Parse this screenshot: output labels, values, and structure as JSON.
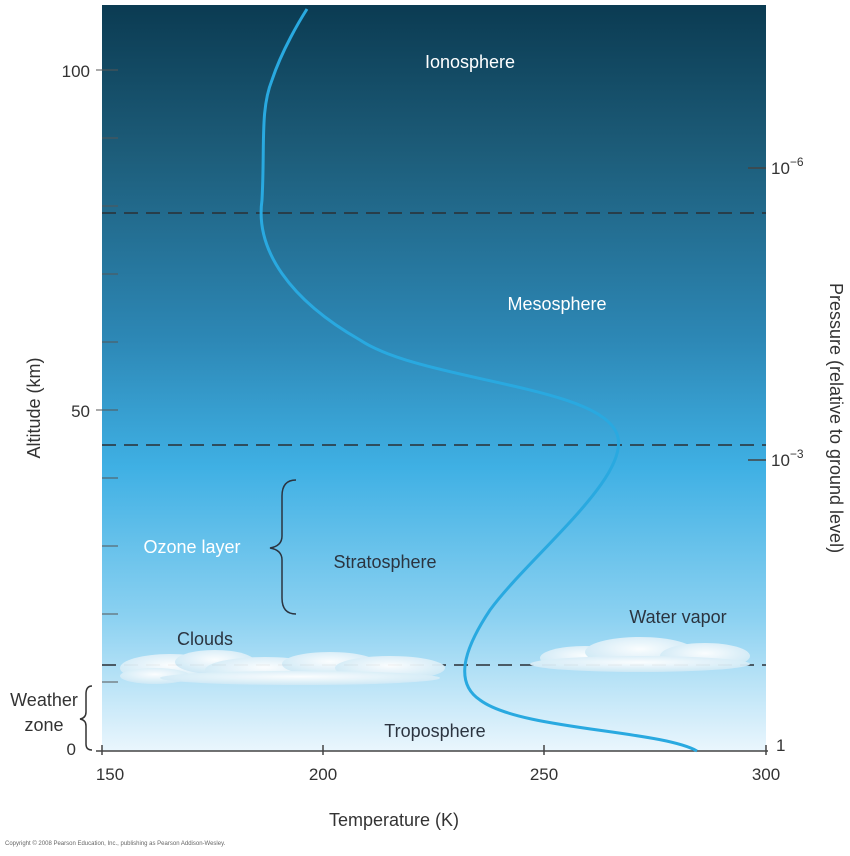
{
  "axes": {
    "altitude_label": "Altitude (km)",
    "temperature_label": "Temperature (K)",
    "pressure_label": "Pressure (relative to ground level)",
    "altitude_ticks": [
      "100",
      "50",
      "0"
    ],
    "temperature_ticks": [
      "150",
      "200",
      "250",
      "300"
    ],
    "pressure_tick_1": "1",
    "pressure_tick_base": "10",
    "pressure_tick_e3": "−3",
    "pressure_tick_e6": "−6"
  },
  "layers": {
    "ionosphere": "Ionosphere",
    "mesosphere": "Mesosphere",
    "stratosphere": "Stratosphere",
    "troposphere": "Troposphere"
  },
  "annotations": {
    "ozone_layer": "Ozone layer",
    "clouds": "Clouds",
    "water_vapor": "Water vapor",
    "weather_line1": "Weather",
    "weather_line2": "zone"
  },
  "copyright": "Copyright © 2008 Pearson Education, Inc., publishing as Pearson Addison-Wesley.",
  "colors": {
    "sky_top": "#0b3b52",
    "sky_bottom": "#eaf6fd",
    "curve": "#29a9e0"
  },
  "chart_data": {
    "type": "line",
    "xlabel": "Temperature (K)",
    "ylabel": "Altitude (km)",
    "xlim": [
      150,
      300
    ],
    "ylim": [
      0,
      110
    ],
    "temperature_profile": {
      "x": [
        285,
        260,
        240,
        233,
        232,
        235,
        245,
        260,
        267,
        262,
        240,
        215,
        195,
        187,
        185,
        186,
        190,
        196
      ],
      "y": [
        0,
        2,
        4,
        8,
        10,
        14,
        20,
        30,
        45,
        50,
        55,
        58,
        64,
        72,
        80,
        90,
        100,
        110
      ]
    },
    "boundaries_km": [
      79,
      45,
      12.5
    ]
  }
}
